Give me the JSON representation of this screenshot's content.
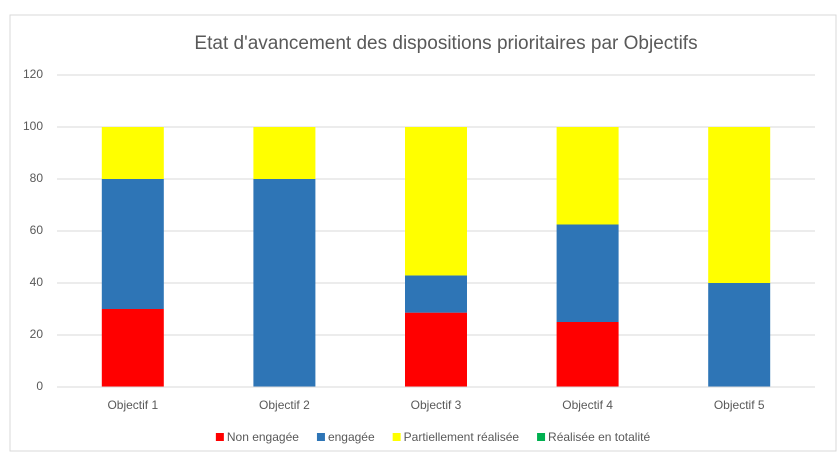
{
  "chart_data": {
    "type": "stacked_bar",
    "title": "Etat d'avancement des dispositions prioritaires par Objectifs",
    "categories": [
      "Objectif 1",
      "Objectif 2",
      "Objectif 3",
      "Objectif 4",
      "Objectif 5"
    ],
    "series": [
      {
        "name": "Non engagée",
        "color": "#ff0000",
        "values": [
          30,
          0,
          28.6,
          25,
          0
        ]
      },
      {
        "name": "engagée",
        "color": "#2e75b6",
        "values": [
          50,
          80,
          14.3,
          37.5,
          40
        ]
      },
      {
        "name": "Partiellement réalisée",
        "color": "#ffff00",
        "values": [
          20,
          20,
          57.1,
          37.5,
          60
        ]
      },
      {
        "name": "Réalisée en totalité",
        "color": "#00b050",
        "values": [
          0,
          0,
          0,
          0,
          0
        ]
      }
    ],
    "ylim": [
      0,
      120
    ],
    "yticks": [
      0,
      20,
      40,
      60,
      80,
      100,
      120
    ],
    "grid": true,
    "legend": "bottom"
  }
}
